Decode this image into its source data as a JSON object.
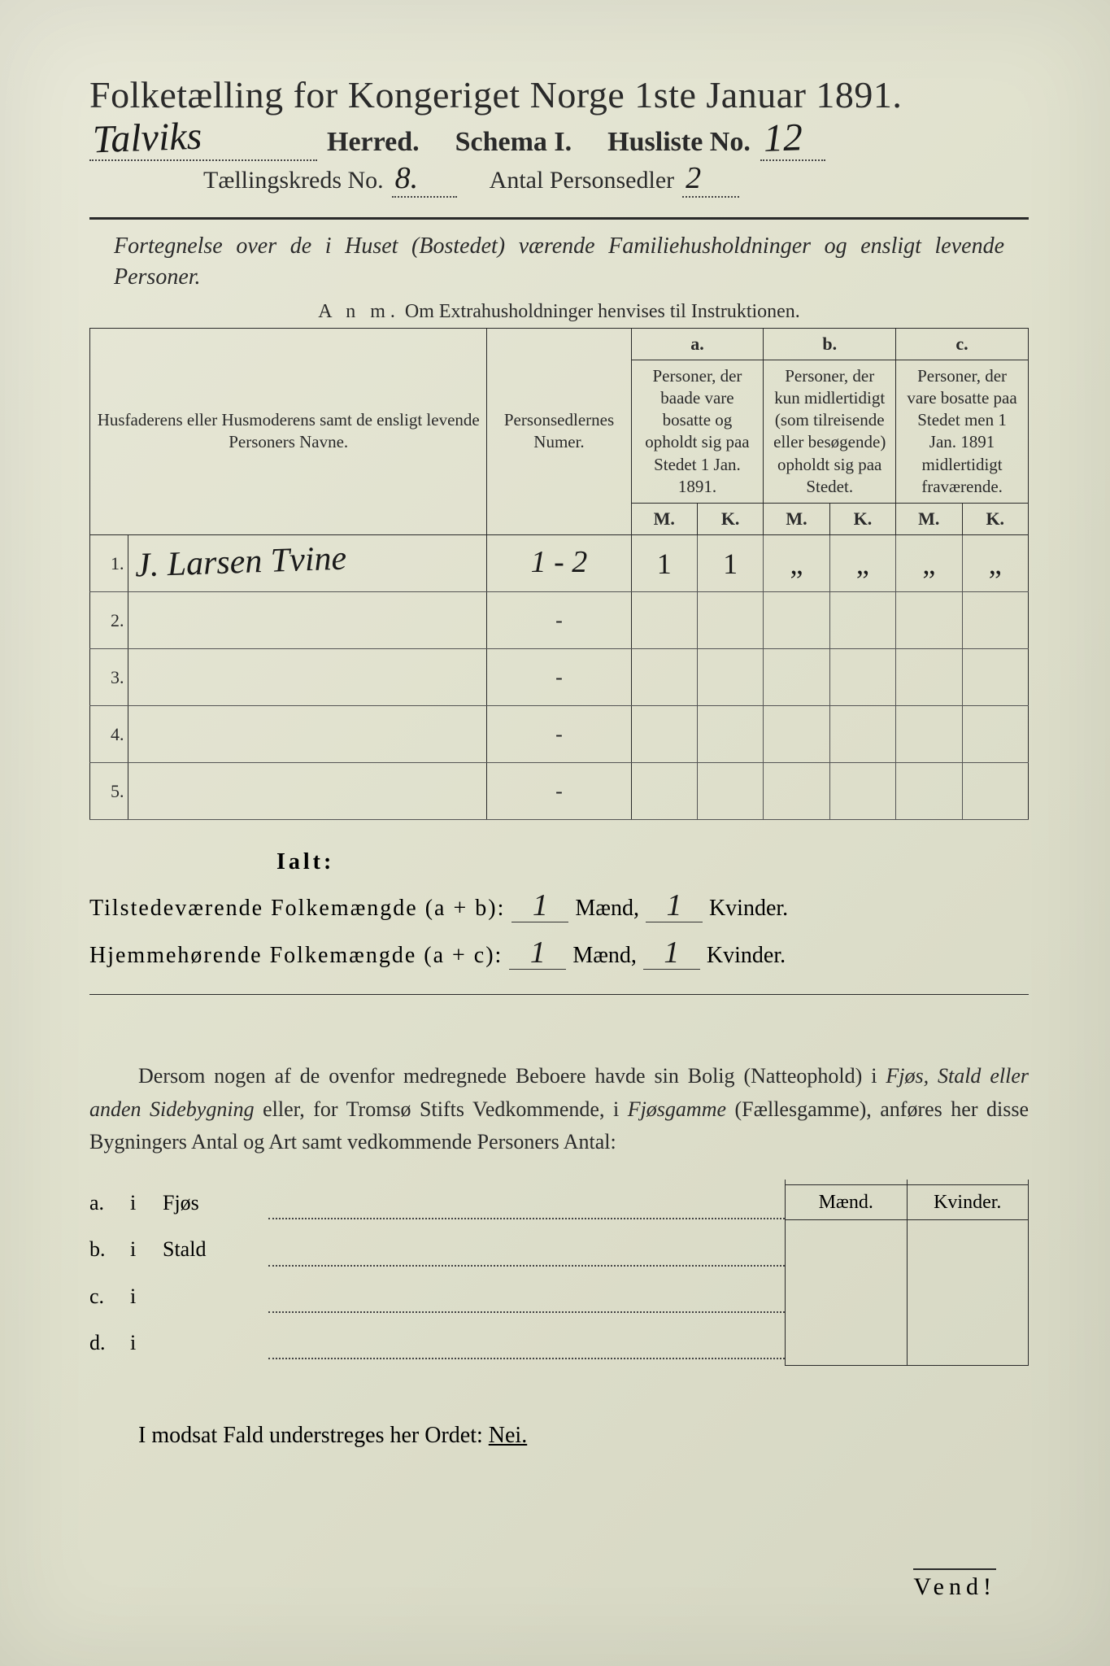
{
  "title": "Folketælling for Kongeriget Norge 1ste Januar 1891.",
  "herred": {
    "value_hand": "Talviks",
    "label": "Herred.",
    "schema_label": "Schema I.",
    "husliste_label": "Husliste No.",
    "husliste_no": "12"
  },
  "tk": {
    "label": "Tællingskreds No.",
    "no": "8.",
    "antal_label": "Antal Personsedler",
    "antal": "2"
  },
  "subtitle": "Fortegnelse over de i Huset (Bostedet) værende Familiehusholdninger og ensligt levende Personer.",
  "anm_prefix": "A n m.",
  "anm": "Om Extrahusholdninger henvises til Instruktionen.",
  "columns": {
    "name_hdr": "Husfaderens eller Husmoderens samt de ensligt levende Personers Navne.",
    "num_hdr": "Personsedlernes Numer.",
    "a_label": "a.",
    "a_text": "Personer, der baade vare bosatte og opholdt sig paa Stedet 1 Jan. 1891.",
    "b_label": "b.",
    "b_text": "Personer, der kun midlertidigt (som tilreisende eller besøgende) opholdt sig paa Stedet.",
    "c_label": "c.",
    "c_text": "Personer, der vare bosatte paa Stedet men 1 Jan. 1891 midlertidigt fraværende.",
    "m": "M.",
    "k": "K."
  },
  "rows": [
    {
      "n": "1.",
      "name": "J. Larsen Tvine",
      "num": "1 - 2",
      "aM": "1",
      "aK": "1",
      "bM": "„",
      "bK": "„",
      "cM": "„",
      "cK": "„"
    },
    {
      "n": "2.",
      "name": "",
      "num": "-",
      "aM": "",
      "aK": "",
      "bM": "",
      "bK": "",
      "cM": "",
      "cK": ""
    },
    {
      "n": "3.",
      "name": "",
      "num": "-",
      "aM": "",
      "aK": "",
      "bM": "",
      "bK": "",
      "cM": "",
      "cK": ""
    },
    {
      "n": "4.",
      "name": "",
      "num": "-",
      "aM": "",
      "aK": "",
      "bM": "",
      "bK": "",
      "cM": "",
      "cK": ""
    },
    {
      "n": "5.",
      "name": "",
      "num": "-",
      "aM": "",
      "aK": "",
      "bM": "",
      "bK": "",
      "cM": "",
      "cK": ""
    }
  ],
  "ialt": "Ialt:",
  "sum1": {
    "label": "Tilstedeværende Folkemængde (a + b):",
    "m": "1",
    "mlabel": "Mænd,",
    "k": "1",
    "klabel": "Kvinder."
  },
  "sum2": {
    "label": "Hjemmehørende Folkemængde (a + c):",
    "m": "1",
    "mlabel": "Mænd,",
    "k": "1",
    "klabel": "Kvinder."
  },
  "para": {
    "t1": "Dersom nogen af de ovenfor medregnede Beboere havde sin Bolig (Natteophold) i ",
    "i1": "Fjøs, Stald eller anden Sidebygning",
    "t2": " eller, for Tromsø Stifts Vedkommende, i ",
    "i2": "Fjøsgamme",
    "t3": " (Fællesgamme), anføres her disse Bygningers Antal og Art samt vedkommende Personers Antal:"
  },
  "side": {
    "m": "Mænd.",
    "k": "Kvinder.",
    "rows": [
      {
        "a": "a.",
        "i": "i",
        "label": "Fjøs"
      },
      {
        "a": "b.",
        "i": "i",
        "label": "Stald"
      },
      {
        "a": "c.",
        "i": "i",
        "label": ""
      },
      {
        "a": "d.",
        "i": "i",
        "label": ""
      }
    ]
  },
  "nei": {
    "text": "I modsat Fald understreges her Ordet: ",
    "word": "Nei."
  },
  "vend": "Vend!",
  "colors": {
    "paper": "#e2e3cf",
    "ink": "#2a2a2a",
    "hand": "#1a1a1a"
  }
}
